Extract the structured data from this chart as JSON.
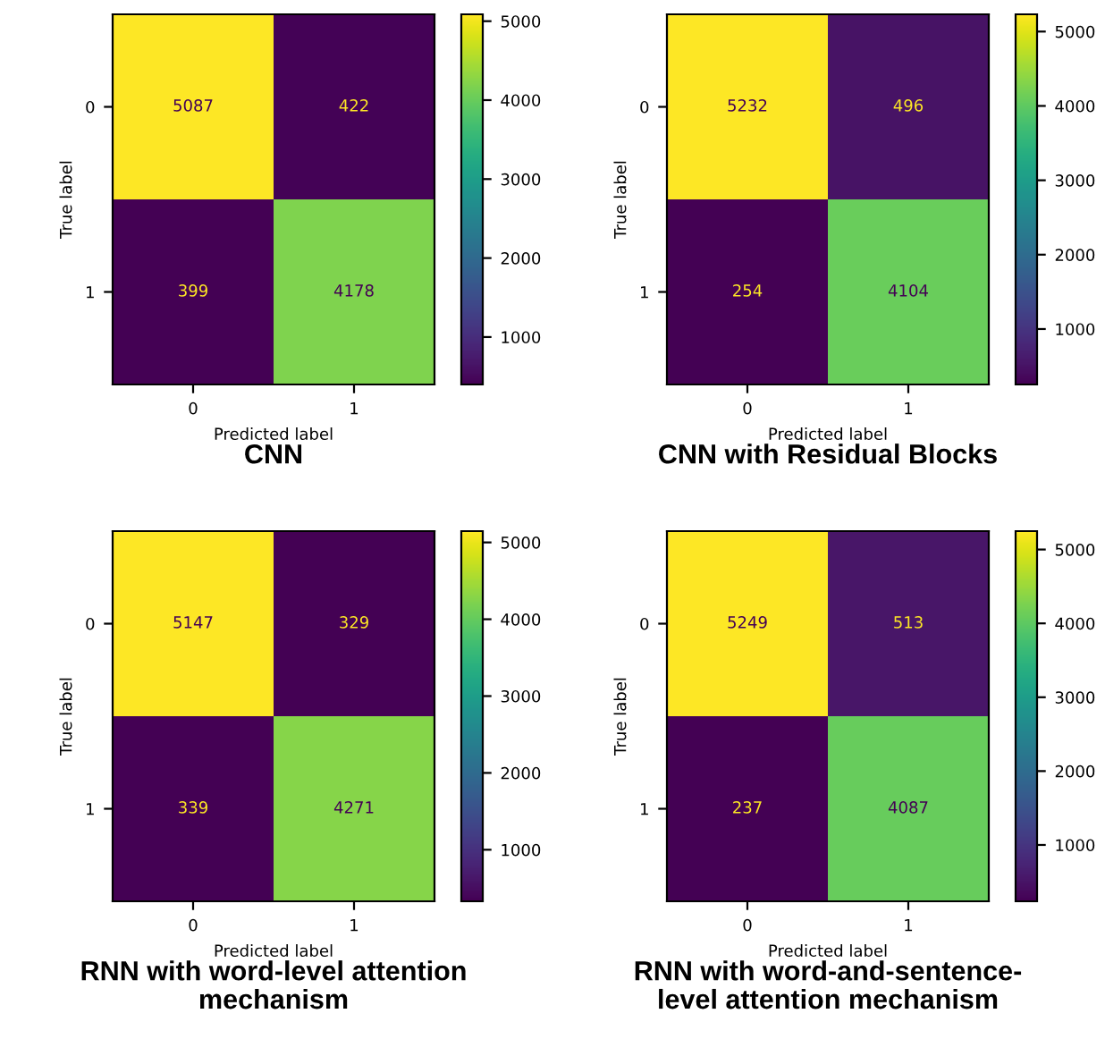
{
  "chart_data": [
    {
      "type": "heatmap",
      "title": "CNN",
      "xlabel": "Predicted label",
      "ylabel": "True label",
      "categories": [
        "0",
        "1"
      ],
      "y_categories": [
        "0",
        "1"
      ],
      "cells": [
        [
          5087,
          422
        ],
        [
          399,
          4178
        ]
      ],
      "clim": [
        399,
        5087
      ],
      "cticks": [
        1000,
        2000,
        3000,
        4000,
        5000
      ],
      "data_labels": true
    },
    {
      "type": "heatmap",
      "title": "CNN with Residual Blocks",
      "xlabel": "Predicted label",
      "ylabel": "True label",
      "categories": [
        "0",
        "1"
      ],
      "y_categories": [
        "0",
        "1"
      ],
      "cells": [
        [
          5232,
          496
        ],
        [
          254,
          4104
        ]
      ],
      "clim": [
        254,
        5232
      ],
      "cticks": [
        1000,
        2000,
        3000,
        4000,
        5000
      ],
      "data_labels": true
    },
    {
      "type": "heatmap",
      "title": "RNN with word-level attention\nmechanism",
      "xlabel": "Predicted label",
      "ylabel": "True label",
      "categories": [
        "0",
        "1"
      ],
      "y_categories": [
        "0",
        "1"
      ],
      "cells": [
        [
          5147,
          329
        ],
        [
          339,
          4271
        ]
      ],
      "clim": [
        329,
        5147
      ],
      "cticks": [
        1000,
        2000,
        3000,
        4000,
        5000
      ],
      "data_labels": true
    },
    {
      "type": "heatmap",
      "title": "RNN with word-and-sentence-\nlevel attention mechanism",
      "xlabel": "Predicted label",
      "ylabel": "True label",
      "categories": [
        "0",
        "1"
      ],
      "y_categories": [
        "0",
        "1"
      ],
      "cells": [
        [
          5249,
          513
        ],
        [
          237,
          4087
        ]
      ],
      "clim": [
        237,
        5249
      ],
      "cticks": [
        1000,
        2000,
        3000,
        4000,
        5000
      ],
      "data_labels": true
    }
  ]
}
